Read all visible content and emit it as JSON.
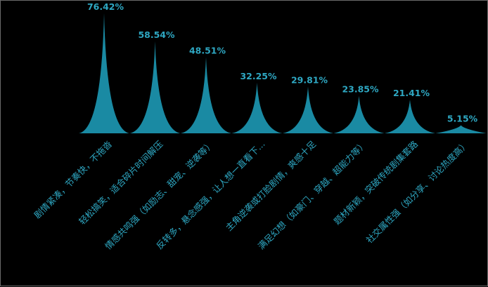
{
  "chart_data": {
    "type": "bar",
    "bar_shape": "spike",
    "categories": [
      "剧情紧凑，节奏快，不拖沓",
      "轻松搞笑，适合碎片时间解压",
      "情感共鸣强（如励志、甜宠、逆袭等）",
      "反转多，悬念感强，让人想一直看下...",
      "主角逆袭或打脸剧情，爽感十足",
      "满足幻想（如豪门、穿越、超能力等）",
      "题材新颖，突破传统剧集套路",
      "社交属性强（如分享、讨论热度高）"
    ],
    "values": [
      76.42,
      58.54,
      48.51,
      32.25,
      29.81,
      23.85,
      21.41,
      5.15
    ],
    "value_labels": [
      "76.42%",
      "58.54%",
      "48.51%",
      "32.25%",
      "29.81%",
      "23.85%",
      "21.41%",
      "5.15%"
    ],
    "unit": "%",
    "ylim": [
      0,
      80
    ],
    "grid": false,
    "legend": "none",
    "title": "",
    "xlabel": "",
    "ylabel": "",
    "colors": {
      "background": "#000000",
      "bar": "#1a8aa3",
      "value_label": "#2ea7c2",
      "category_label": "#2ea7c2",
      "frame": "#6a6a6a"
    }
  }
}
